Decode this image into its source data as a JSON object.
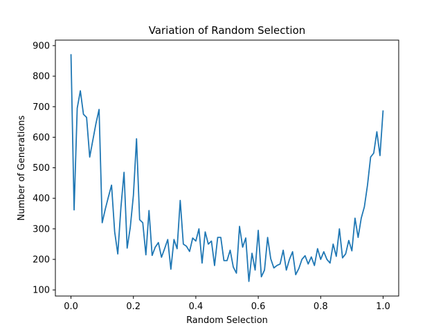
{
  "chart_data": {
    "type": "line",
    "title": "Variation of Random Selection",
    "xlabel": "Random Selection",
    "ylabel": "Number of Generations",
    "xlim": [
      -0.05,
      1.05
    ],
    "ylim": [
      80,
      918
    ],
    "xticks": [
      0.0,
      0.2,
      0.4,
      0.6,
      0.8,
      1.0
    ],
    "xtick_labels": [
      "0.0",
      "0.2",
      "0.4",
      "0.6",
      "0.8",
      "1.0"
    ],
    "yticks": [
      100,
      200,
      300,
      400,
      500,
      600,
      700,
      800,
      900
    ],
    "ytick_labels": [
      "100",
      "200",
      "300",
      "400",
      "500",
      "600",
      "700",
      "800",
      "900"
    ],
    "grid": false,
    "line_color": "#1f77b4",
    "series": [
      {
        "x": [
          0.0,
          0.01,
          0.02,
          0.03,
          0.04,
          0.05,
          0.06,
          0.07,
          0.08,
          0.09,
          0.1,
          0.11,
          0.12,
          0.13,
          0.14,
          0.15,
          0.16,
          0.17,
          0.18,
          0.19,
          0.2,
          0.21,
          0.22,
          0.23,
          0.24,
          0.25,
          0.26,
          0.27,
          0.28,
          0.29,
          0.3,
          0.31,
          0.32,
          0.33,
          0.34,
          0.35,
          0.36,
          0.37,
          0.38,
          0.39,
          0.4,
          0.41,
          0.42,
          0.43,
          0.44,
          0.45,
          0.46,
          0.47,
          0.48,
          0.49,
          0.5,
          0.51,
          0.52,
          0.53,
          0.54,
          0.55,
          0.56,
          0.57,
          0.58,
          0.59,
          0.6,
          0.61,
          0.62,
          0.63,
          0.64,
          0.65,
          0.66,
          0.67,
          0.68,
          0.69,
          0.7,
          0.71,
          0.72,
          0.73,
          0.74,
          0.75,
          0.76,
          0.77,
          0.78,
          0.79,
          0.8,
          0.81,
          0.82,
          0.83,
          0.84,
          0.85,
          0.86,
          0.87,
          0.88,
          0.89,
          0.9,
          0.91,
          0.92,
          0.93,
          0.94,
          0.95,
          0.96,
          0.97,
          0.98,
          0.99,
          1.0
        ],
        "y": [
          872,
          362,
          695,
          752,
          675,
          665,
          535,
          590,
          645,
          691,
          320,
          365,
          405,
          443,
          290,
          218,
          370,
          485,
          237,
          305,
          410,
          595,
          330,
          320,
          215,
          360,
          213,
          240,
          255,
          207,
          235,
          265,
          168,
          265,
          235,
          393,
          250,
          243,
          226,
          270,
          260,
          300,
          188,
          290,
          250,
          260,
          180,
          272,
          272,
          196,
          196,
          230,
          175,
          155,
          308,
          240,
          270,
          128,
          220,
          165,
          295,
          143,
          165,
          272,
          202,
          172,
          180,
          185,
          230,
          165,
          200,
          225,
          150,
          170,
          200,
          212,
          185,
          208,
          180,
          235,
          200,
          225,
          200,
          188,
          250,
          210,
          300,
          205,
          218,
          262,
          228,
          335,
          272,
          335,
          372,
          443,
          535,
          548,
          618,
          540,
          688
        ]
      }
    ]
  }
}
